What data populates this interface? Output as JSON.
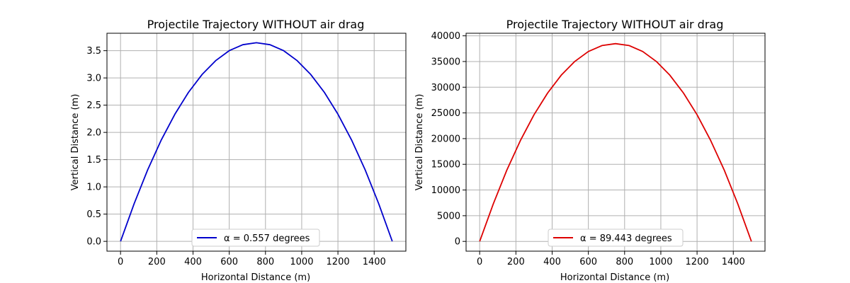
{
  "chart_data": [
    {
      "type": "line",
      "title": "Projectile Trajectory WITHOUT air drag",
      "xlabel": "Horizontal Distance (m)",
      "ylabel": "Vertical Distance (m)",
      "xlim": [
        -75,
        1575
      ],
      "ylim": [
        -0.18,
        3.82
      ],
      "xticks": [
        0,
        200,
        400,
        600,
        800,
        1000,
        1200,
        1400
      ],
      "xtick_labels": [
        "0",
        "200",
        "400",
        "600",
        "800",
        "1000",
        "1200",
        "1400"
      ],
      "yticks": [
        0.0,
        0.5,
        1.0,
        1.5,
        2.0,
        2.5,
        3.0,
        3.5
      ],
      "ytick_labels": [
        "0.0",
        "0.5",
        "1.0",
        "1.5",
        "2.0",
        "2.5",
        "3.0",
        "3.5"
      ],
      "grid": true,
      "legend": "lower center",
      "series": [
        {
          "name": "α = 0.557 degrees",
          "color": "#0000cc",
          "x": [
            0,
            75,
            150,
            225,
            300,
            375,
            450,
            525,
            600,
            675,
            750,
            825,
            900,
            975,
            1050,
            1125,
            1200,
            1275,
            1350,
            1425,
            1500
          ],
          "y": [
            0.0,
            0.693,
            1.313,
            1.861,
            2.334,
            2.735,
            3.063,
            3.318,
            3.5,
            3.61,
            3.646,
            3.61,
            3.5,
            3.318,
            3.063,
            2.735,
            2.334,
            1.861,
            1.313,
            0.693,
            0.0
          ]
        }
      ]
    },
    {
      "type": "line",
      "title": "Projectile Trajectory WITHOUT air drag",
      "xlabel": "Horizontal Distance (m)",
      "ylabel": "Vertical Distance (m)",
      "xlim": [
        -75,
        1575
      ],
      "ylim": [
        -1900,
        40500
      ],
      "xticks": [
        0,
        200,
        400,
        600,
        800,
        1000,
        1200,
        1400
      ],
      "xtick_labels": [
        "0",
        "200",
        "400",
        "600",
        "800",
        "1000",
        "1200",
        "1400"
      ],
      "yticks": [
        0,
        5000,
        10000,
        15000,
        20000,
        25000,
        30000,
        35000,
        40000
      ],
      "ytick_labels": [
        "0",
        "5000",
        "10000",
        "15000",
        "20000",
        "25000",
        "30000",
        "35000",
        "40000"
      ],
      "grid": true,
      "legend": "lower center",
      "series": [
        {
          "name": "α = 89.443 degrees",
          "color": "#dd0000",
          "x": [
            0,
            75,
            150,
            225,
            300,
            375,
            450,
            525,
            600,
            675,
            750,
            825,
            900,
            975,
            1050,
            1125,
            1200,
            1275,
            1350,
            1425,
            1500
          ],
          "y": [
            0,
            7300,
            13860,
            19630,
            24640,
            28870,
            32330,
            35020,
            36950,
            38100,
            38480,
            38100,
            36950,
            35020,
            32330,
            28870,
            24640,
            19630,
            13860,
            7300,
            0
          ]
        }
      ]
    }
  ]
}
